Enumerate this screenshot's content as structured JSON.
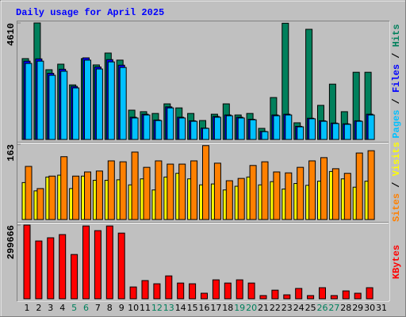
{
  "chart_data": [
    {
      "type": "bar",
      "title": "Daily usage for April 2025",
      "ylim": [
        0,
        4610
      ],
      "yticks": [
        4610
      ],
      "series": [
        {
          "name": "Hits",
          "color": "#00805c",
          "values": [
            3200,
            4610,
            2760,
            2980,
            2160,
            3200,
            2950,
            3420,
            3140,
            1160,
            1100,
            1030,
            1410,
            1250,
            1030,
            750,
            1000,
            1410,
            970,
            1030,
            440,
            1660,
            4600,
            660,
            4360,
            1350,
            2190,
            1100,
            2660,
            2660,
            0
          ]
        },
        {
          "name": "Files",
          "color": "#0000ff",
          "values": [
            3100,
            3190,
            2620,
            2780,
            2100,
            3230,
            2870,
            3160,
            2940,
            880,
            1000,
            770,
            1290,
            880,
            740,
            450,
            910,
            970,
            880,
            800,
            320,
            970,
            1000,
            520,
            840,
            740,
            650,
            620,
            740,
            1000,
            0
          ]
        },
        {
          "name": "Pages",
          "color": "#00c0ff",
          "values": [
            3010,
            3100,
            2540,
            2700,
            2040,
            3140,
            2790,
            3070,
            2850,
            850,
            970,
            750,
            1250,
            850,
            720,
            440,
            880,
            940,
            850,
            780,
            310,
            940,
            970,
            500,
            820,
            720,
            630,
            600,
            720,
            970,
            0
          ]
        }
      ]
    },
    {
      "type": "bar",
      "ylim": [
        0,
        163
      ],
      "yticks": [
        163
      ],
      "series": [
        {
          "name": "Visits",
          "color": "#ffff00",
          "values": [
            80,
            62,
            92,
            96,
            67,
            94,
            85,
            85,
            86,
            75,
            88,
            64,
            92,
            100,
            88,
            75,
            77,
            64,
            72,
            92,
            75,
            82,
            66,
            78,
            74,
            83,
            104,
            88,
            70,
            83,
            0
          ]
        },
        {
          "name": "Sites",
          "color": "#ff8000",
          "values": [
            115,
            67,
            94,
            136,
            94,
            103,
            105,
            127,
            125,
            146,
            113,
            127,
            120,
            120,
            127,
            160,
            122,
            84,
            89,
            117,
            125,
            103,
            101,
            113,
            127,
            134,
            110,
            100,
            144,
            149,
            0
          ]
        }
      ]
    },
    {
      "type": "bar",
      "ylim": [
        0,
        299666
      ],
      "yticks": [
        299666
      ],
      "categories": [
        "1",
        "2",
        "3",
        "4",
        "5",
        "6",
        "7",
        "8",
        "9",
        "10",
        "11",
        "12",
        "13",
        "14",
        "15",
        "16",
        "17",
        "18",
        "19",
        "20",
        "21",
        "22",
        "23",
        "24",
        "25",
        "26",
        "27",
        "28",
        "29",
        "30",
        "31"
      ],
      "category_colors": [
        "#000000",
        "#000000",
        "#000000",
        "#000000",
        "#00805c",
        "#00805c",
        "#000000",
        "#000000",
        "#000000",
        "#000000",
        "#000000",
        "#00805c",
        "#00805c",
        "#000000",
        "#000000",
        "#000000",
        "#000000",
        "#000000",
        "#00805c",
        "#00805c",
        "#000000",
        "#000000",
        "#000000",
        "#000000",
        "#000000",
        "#00805c",
        "#00805c",
        "#000000",
        "#000000",
        "#000000",
        "#000000"
      ],
      "series": [
        {
          "name": "KBytes",
          "color": "#ff0000",
          "values": [
            299666,
            235000,
            248000,
            261000,
            180000,
            296000,
            277000,
            296000,
            267000,
            48000,
            74000,
            61000,
            93000,
            64000,
            61000,
            22500,
            77000,
            64000,
            77000,
            64000,
            13000,
            35000,
            16000,
            42000,
            13000,
            45000,
            13000,
            32000,
            22500,
            45000,
            0
          ]
        }
      ]
    }
  ]
}
